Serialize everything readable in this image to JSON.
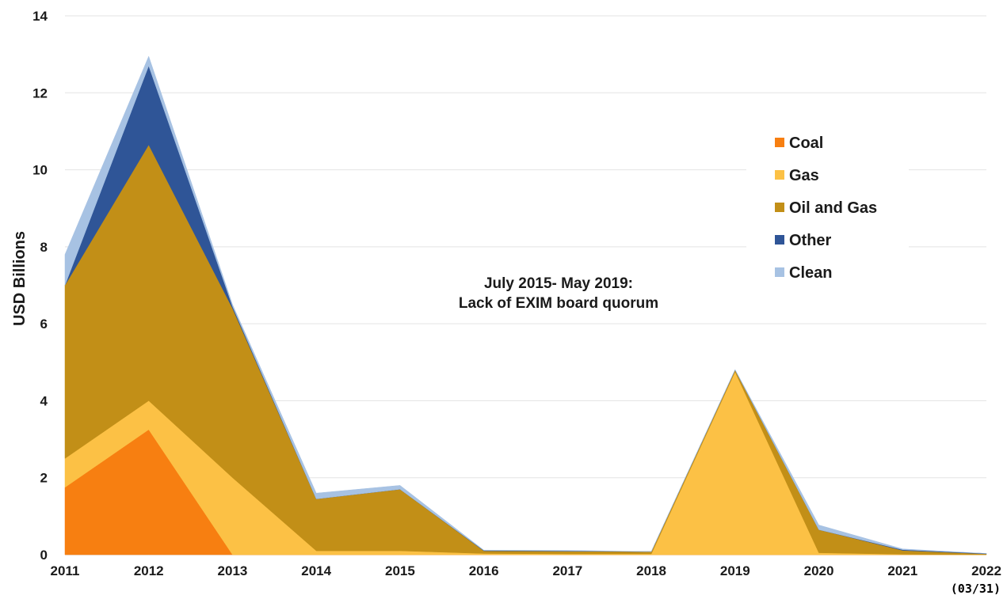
{
  "chart_data": {
    "type": "area",
    "stacked": true,
    "title": "",
    "xlabel": "",
    "ylabel": "USD Billions",
    "ylim": [
      0,
      14
    ],
    "yticks": [
      0,
      2,
      4,
      6,
      8,
      10,
      12,
      14
    ],
    "x": [
      "2011",
      "2012",
      "2013",
      "2014",
      "2015",
      "2016",
      "2017",
      "2018",
      "2019",
      "2020",
      "2021",
      "2022"
    ],
    "grid": "horizontal",
    "legend_position": "right",
    "series": [
      {
        "name": "Coal",
        "color": "#f77f11",
        "values": [
          1.75,
          3.25,
          0,
          0,
          0,
          0,
          0,
          0,
          0,
          0,
          0,
          0
        ]
      },
      {
        "name": "Gas",
        "color": "#fcc145",
        "values": [
          0.75,
          0.75,
          2.0,
          0.1,
          0.1,
          0.03,
          0.02,
          0.02,
          4.75,
          0.05,
          0.01,
          0.0
        ]
      },
      {
        "name": "Oil and Gas",
        "color": "#c28f17",
        "values": [
          4.5,
          6.65,
          4.4,
          1.35,
          1.6,
          0.07,
          0.07,
          0.06,
          0.05,
          0.6,
          0.1,
          0.02
        ]
      },
      {
        "name": "Other",
        "color": "#2f5597",
        "values": [
          0,
          2.05,
          0.05,
          0,
          0,
          0.01,
          0.01,
          0,
          0,
          0,
          0.02,
          0.01
        ]
      },
      {
        "name": "Clean",
        "color": "#a7c2e3",
        "values": [
          0.8,
          0.25,
          0.05,
          0.15,
          0.1,
          0.01,
          0.01,
          0,
          0.01,
          0.12,
          0.02,
          0.0
        ]
      }
    ],
    "annotation": [
      "July 2015- May 2019:",
      "Lack of EXIM board quorum"
    ]
  },
  "page_tag": "(03/31)"
}
